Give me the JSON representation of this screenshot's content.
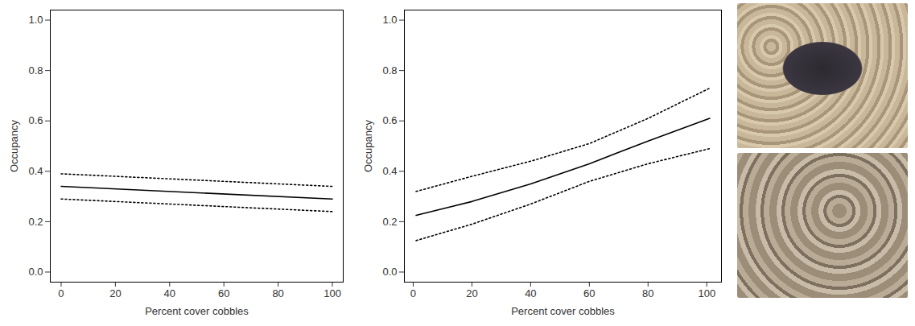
{
  "chart_data": [
    {
      "type": "line",
      "xlabel": "Percent cover cobbles",
      "ylabel": "Occupancy",
      "xlim": [
        -4,
        104
      ],
      "xticks": [
        0,
        20,
        40,
        60,
        80,
        100
      ],
      "ylim": [
        -0.04,
        1.04
      ],
      "yticks": [
        {
          "value": 0,
          "label": "0.0"
        },
        0.2,
        0.4,
        0.6,
        0.8,
        {
          "value": 1,
          "label": "1.0"
        }
      ],
      "grid": false,
      "x": [
        0,
        100
      ],
      "series": [
        {
          "color": "#000000",
          "line_style": "solid",
          "values": [
            0.34,
            0.29
          ]
        },
        {
          "color": "#000000",
          "line_style": "dotted",
          "values": [
            0.39,
            0.34
          ]
        },
        {
          "color": "#000000",
          "line_style": "dotted",
          "values": [
            0.29,
            0.24
          ]
        }
      ]
    },
    {
      "type": "line",
      "xlabel": "Percent cover cobbles",
      "ylabel": "Occupancy",
      "xlim": [
        -3,
        105
      ],
      "xticks": [
        0,
        20,
        40,
        60,
        80,
        100
      ],
      "ylim": [
        -0.04,
        1.04
      ],
      "yticks": [
        {
          "value": 0,
          "label": "0.0"
        },
        0.2,
        0.4,
        0.6,
        0.8,
        {
          "value": 1,
          "label": "1.0"
        }
      ],
      "grid": false,
      "x": [
        1,
        20,
        40,
        60,
        80,
        101
      ],
      "series": [
        {
          "color": "#000000",
          "line_style": "solid",
          "values": [
            0.225,
            0.28,
            0.35,
            0.43,
            0.52,
            0.61
          ]
        },
        {
          "color": "#000000",
          "line_style": "dotted",
          "values": [
            0.32,
            0.38,
            0.44,
            0.51,
            0.61,
            0.73
          ]
        },
        {
          "color": "#000000",
          "line_style": "dotted",
          "values": [
            0.125,
            0.19,
            0.27,
            0.36,
            0.43,
            0.49
          ]
        }
      ]
    }
  ]
}
